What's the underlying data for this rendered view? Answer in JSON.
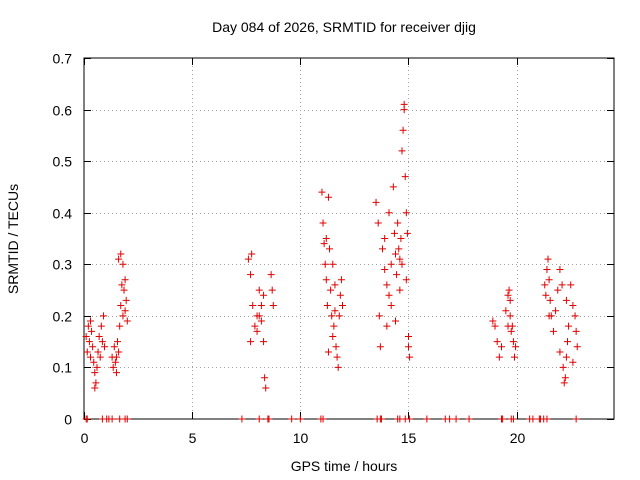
{
  "chart_data": {
    "type": "scatter",
    "title": "Day 084 of 2026, SRMTID for receiver djig",
    "xlabel": "GPS time / hours",
    "ylabel": "SRMTID / TECUs",
    "xlim": [
      0,
      24.5
    ],
    "ylim": [
      0,
      0.7
    ],
    "xticks": [
      0,
      5,
      10,
      15,
      20
    ],
    "yticks": [
      0,
      0.1,
      0.2,
      0.3,
      0.4,
      0.5,
      0.6,
      0.7
    ],
    "x_tick_labels": [
      "0",
      "5",
      "10",
      "15",
      "20"
    ],
    "y_tick_labels": [
      "0",
      "0.1",
      "0.2",
      "0.3",
      "0.4",
      "0.5",
      "0.6",
      "0.7"
    ],
    "grid": true,
    "marker": "+",
    "color": "#e00000",
    "series": [
      {
        "name": "SRMTID",
        "points": [
          [
            0.1,
            0.16
          ],
          [
            0.15,
            0.13
          ],
          [
            0.2,
            0.18
          ],
          [
            0.25,
            0.15
          ],
          [
            0.3,
            0.12
          ],
          [
            0.35,
            0.17
          ],
          [
            0.4,
            0.14
          ],
          [
            0.45,
            0.11
          ],
          [
            0.5,
            0.09
          ],
          [
            0.55,
            0.07
          ],
          [
            0.6,
            0.1
          ],
          [
            0.65,
            0.13
          ],
          [
            0.7,
            0.16
          ],
          [
            0.75,
            0.12
          ],
          [
            0.8,
            0.18
          ],
          [
            0.85,
            0.15
          ],
          [
            0.9,
            0.2
          ],
          [
            0.95,
            0.14
          ],
          [
            0.3,
            0.19
          ],
          [
            0.5,
            0.06
          ],
          [
            1.3,
            0.12
          ],
          [
            1.35,
            0.1
          ],
          [
            1.4,
            0.14
          ],
          [
            1.45,
            0.11
          ],
          [
            1.5,
            0.09
          ],
          [
            1.55,
            0.15
          ],
          [
            1.6,
            0.13
          ],
          [
            1.65,
            0.18
          ],
          [
            1.7,
            0.22
          ],
          [
            1.75,
            0.26
          ],
          [
            1.8,
            0.3
          ],
          [
            1.85,
            0.25
          ],
          [
            1.9,
            0.21
          ],
          [
            1.95,
            0.23
          ],
          [
            2.0,
            0.19
          ],
          [
            1.6,
            0.31
          ],
          [
            1.7,
            0.32
          ],
          [
            1.5,
            0.12
          ],
          [
            1.8,
            0.2
          ],
          [
            1.9,
            0.27
          ],
          [
            7.6,
            0.31
          ],
          [
            7.7,
            0.28
          ],
          [
            7.8,
            0.22
          ],
          [
            7.9,
            0.18
          ],
          [
            8.0,
            0.2
          ],
          [
            8.1,
            0.25
          ],
          [
            8.2,
            0.19
          ],
          [
            8.3,
            0.15
          ],
          [
            8.35,
            0.08
          ],
          [
            8.4,
            0.06
          ],
          [
            7.75,
            0.32
          ],
          [
            8.0,
            0.17
          ],
          [
            8.2,
            0.22
          ],
          [
            8.3,
            0.24
          ],
          [
            7.7,
            0.15
          ],
          [
            8.1,
            0.2
          ],
          [
            8.65,
            0.28
          ],
          [
            8.7,
            0.25
          ],
          [
            8.75,
            0.22
          ],
          [
            11.0,
            0.44
          ],
          [
            11.05,
            0.38
          ],
          [
            11.1,
            0.34
          ],
          [
            11.15,
            0.3
          ],
          [
            11.2,
            0.27
          ],
          [
            11.25,
            0.22
          ],
          [
            11.3,
            0.43
          ],
          [
            11.35,
            0.33
          ],
          [
            11.4,
            0.25
          ],
          [
            11.45,
            0.2
          ],
          [
            11.5,
            0.16
          ],
          [
            11.55,
            0.18
          ],
          [
            11.6,
            0.21
          ],
          [
            11.65,
            0.14
          ],
          [
            11.7,
            0.12
          ],
          [
            11.75,
            0.1
          ],
          [
            11.8,
            0.2
          ],
          [
            11.85,
            0.24
          ],
          [
            11.9,
            0.27
          ],
          [
            11.95,
            0.22
          ],
          [
            11.3,
            0.13
          ],
          [
            11.5,
            0.3
          ],
          [
            11.6,
            0.26
          ],
          [
            11.2,
            0.35
          ],
          [
            13.5,
            0.42
          ],
          [
            13.6,
            0.38
          ],
          [
            13.65,
            0.2
          ],
          [
            13.7,
            0.14
          ],
          [
            13.8,
            0.33
          ],
          [
            13.9,
            0.29
          ],
          [
            14.0,
            0.26
          ],
          [
            14.1,
            0.24
          ],
          [
            14.2,
            0.3
          ],
          [
            14.3,
            0.45
          ],
          [
            14.35,
            0.36
          ],
          [
            14.4,
            0.32
          ],
          [
            14.45,
            0.28
          ],
          [
            14.5,
            0.38
          ],
          [
            14.55,
            0.33
          ],
          [
            14.6,
            0.31
          ],
          [
            14.65,
            0.35
          ],
          [
            14.7,
            0.52
          ],
          [
            14.75,
            0.56
          ],
          [
            14.8,
            0.61
          ],
          [
            14.85,
            0.47
          ],
          [
            14.9,
            0.4
          ],
          [
            14.95,
            0.36
          ],
          [
            15.0,
            0.14
          ],
          [
            15.05,
            0.12
          ],
          [
            14.0,
            0.18
          ],
          [
            14.2,
            0.22
          ],
          [
            14.4,
            0.19
          ],
          [
            14.6,
            0.25
          ],
          [
            14.8,
            0.6
          ],
          [
            14.1,
            0.4
          ],
          [
            13.9,
            0.35
          ],
          [
            14.7,
            0.3
          ],
          [
            14.9,
            0.27
          ],
          [
            15.0,
            0.16
          ],
          [
            18.9,
            0.19
          ],
          [
            19.0,
            0.18
          ],
          [
            19.1,
            0.15
          ],
          [
            19.2,
            0.12
          ],
          [
            19.3,
            0.14
          ],
          [
            19.5,
            0.21
          ],
          [
            19.6,
            0.24
          ],
          [
            19.65,
            0.25
          ],
          [
            19.7,
            0.2
          ],
          [
            19.75,
            0.17
          ],
          [
            19.8,
            0.18
          ],
          [
            19.85,
            0.15
          ],
          [
            19.9,
            0.12
          ],
          [
            19.95,
            0.14
          ],
          [
            19.6,
            0.18
          ],
          [
            19.7,
            0.23
          ],
          [
            21.3,
            0.26
          ],
          [
            21.35,
            0.24
          ],
          [
            21.4,
            0.29
          ],
          [
            21.45,
            0.31
          ],
          [
            21.5,
            0.27
          ],
          [
            21.55,
            0.23
          ],
          [
            21.6,
            0.2
          ],
          [
            21.7,
            0.17
          ],
          [
            21.8,
            0.21
          ],
          [
            21.9,
            0.25
          ],
          [
            22.0,
            0.29
          ],
          [
            22.1,
            0.26
          ],
          [
            22.15,
            0.1
          ],
          [
            22.2,
            0.07
          ],
          [
            22.25,
            0.08
          ],
          [
            22.3,
            0.12
          ],
          [
            22.35,
            0.15
          ],
          [
            22.4,
            0.18
          ],
          [
            22.5,
            0.26
          ],
          [
            22.6,
            0.22
          ],
          [
            22.7,
            0.2
          ],
          [
            22.75,
            0.17
          ],
          [
            22.8,
            0.14
          ],
          [
            21.5,
            0.2
          ],
          [
            22.0,
            0.13
          ],
          [
            22.3,
            0.23
          ],
          [
            22.6,
            0.11
          ]
        ]
      }
    ],
    "zero_points_x": [
      0.1,
      0.15,
      0.85,
      1.05,
      1.15,
      1.3,
      1.65,
      1.9,
      2.0,
      7.3,
      8.1,
      8.5,
      8.55,
      9.6,
      10.0,
      10.95,
      11.05,
      13.55,
      13.7,
      13.75,
      14.5,
      14.6,
      14.85,
      15.05,
      15.85,
      16.7,
      16.9,
      17.2,
      17.8,
      19.3,
      19.35,
      19.75,
      19.85,
      20.6,
      20.75,
      21.05,
      21.1,
      21.25,
      21.4,
      22.75
    ]
  }
}
